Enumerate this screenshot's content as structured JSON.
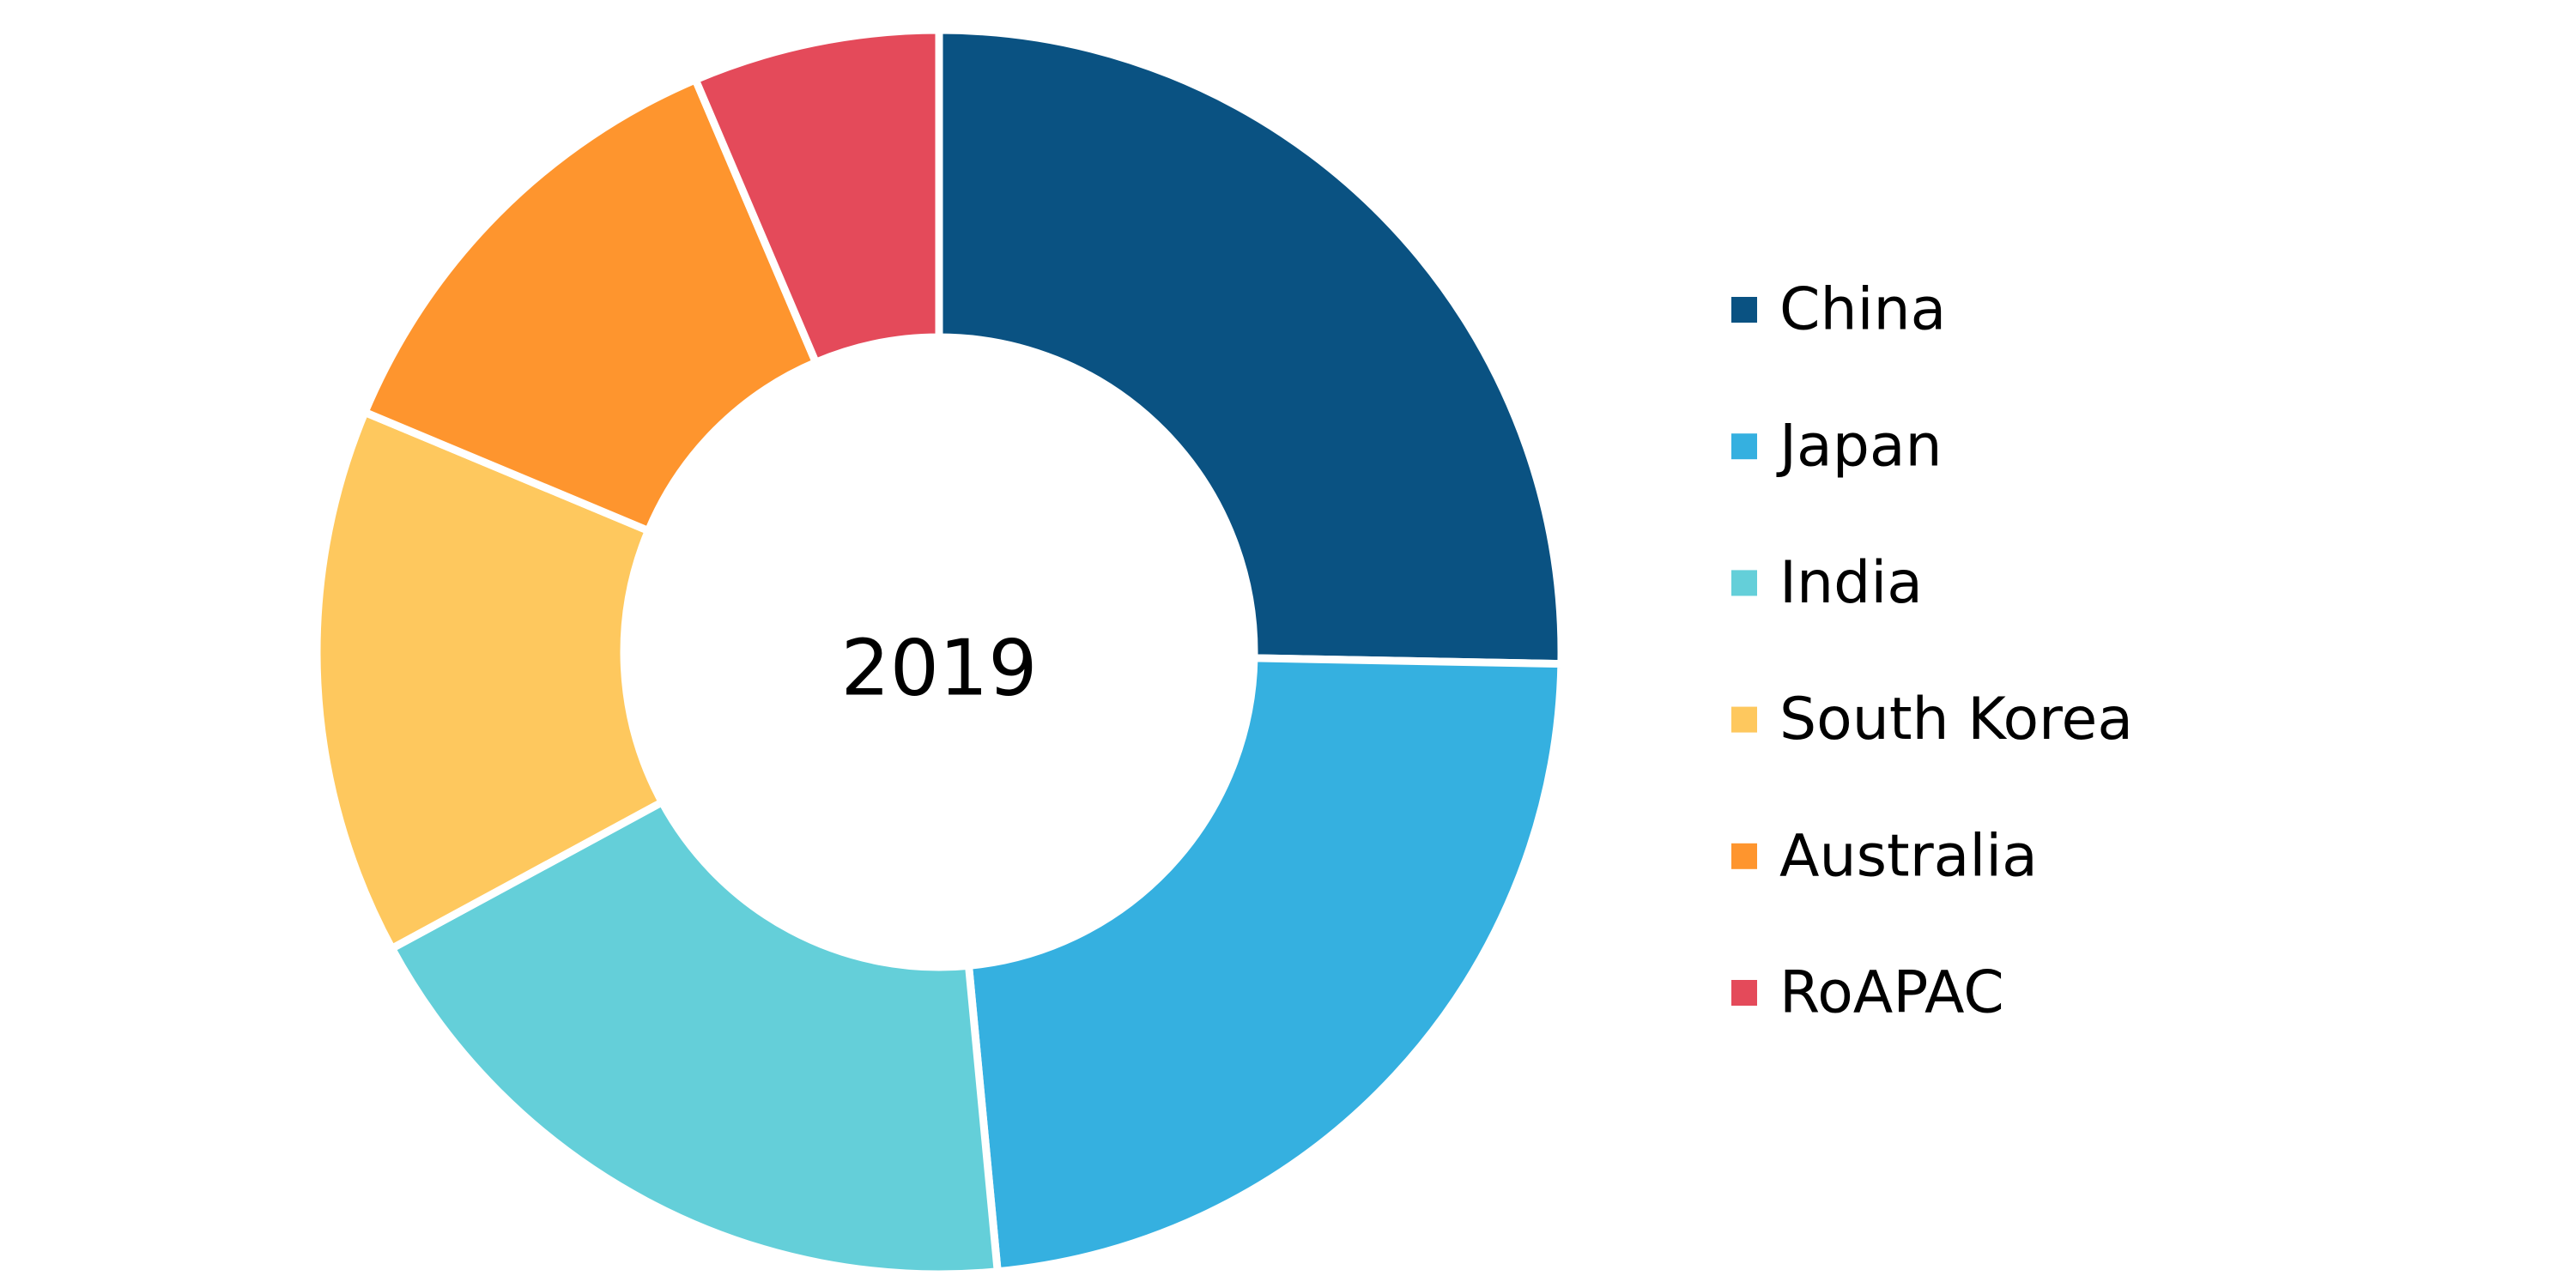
{
  "chart_data": {
    "type": "donut",
    "title": "2019",
    "categories": [
      "China",
      "Japan",
      "India",
      "South Korea",
      "Australia",
      "RoAPAC"
    ],
    "values": [
      25.3,
      23.2,
      18.6,
      14.2,
      12.3,
      6.4
    ],
    "colors": [
      "#0a5282",
      "#35b0e0",
      "#64cfd9",
      "#fec85e",
      "#fe952e",
      "#e44a5a"
    ],
    "legend": "right"
  }
}
